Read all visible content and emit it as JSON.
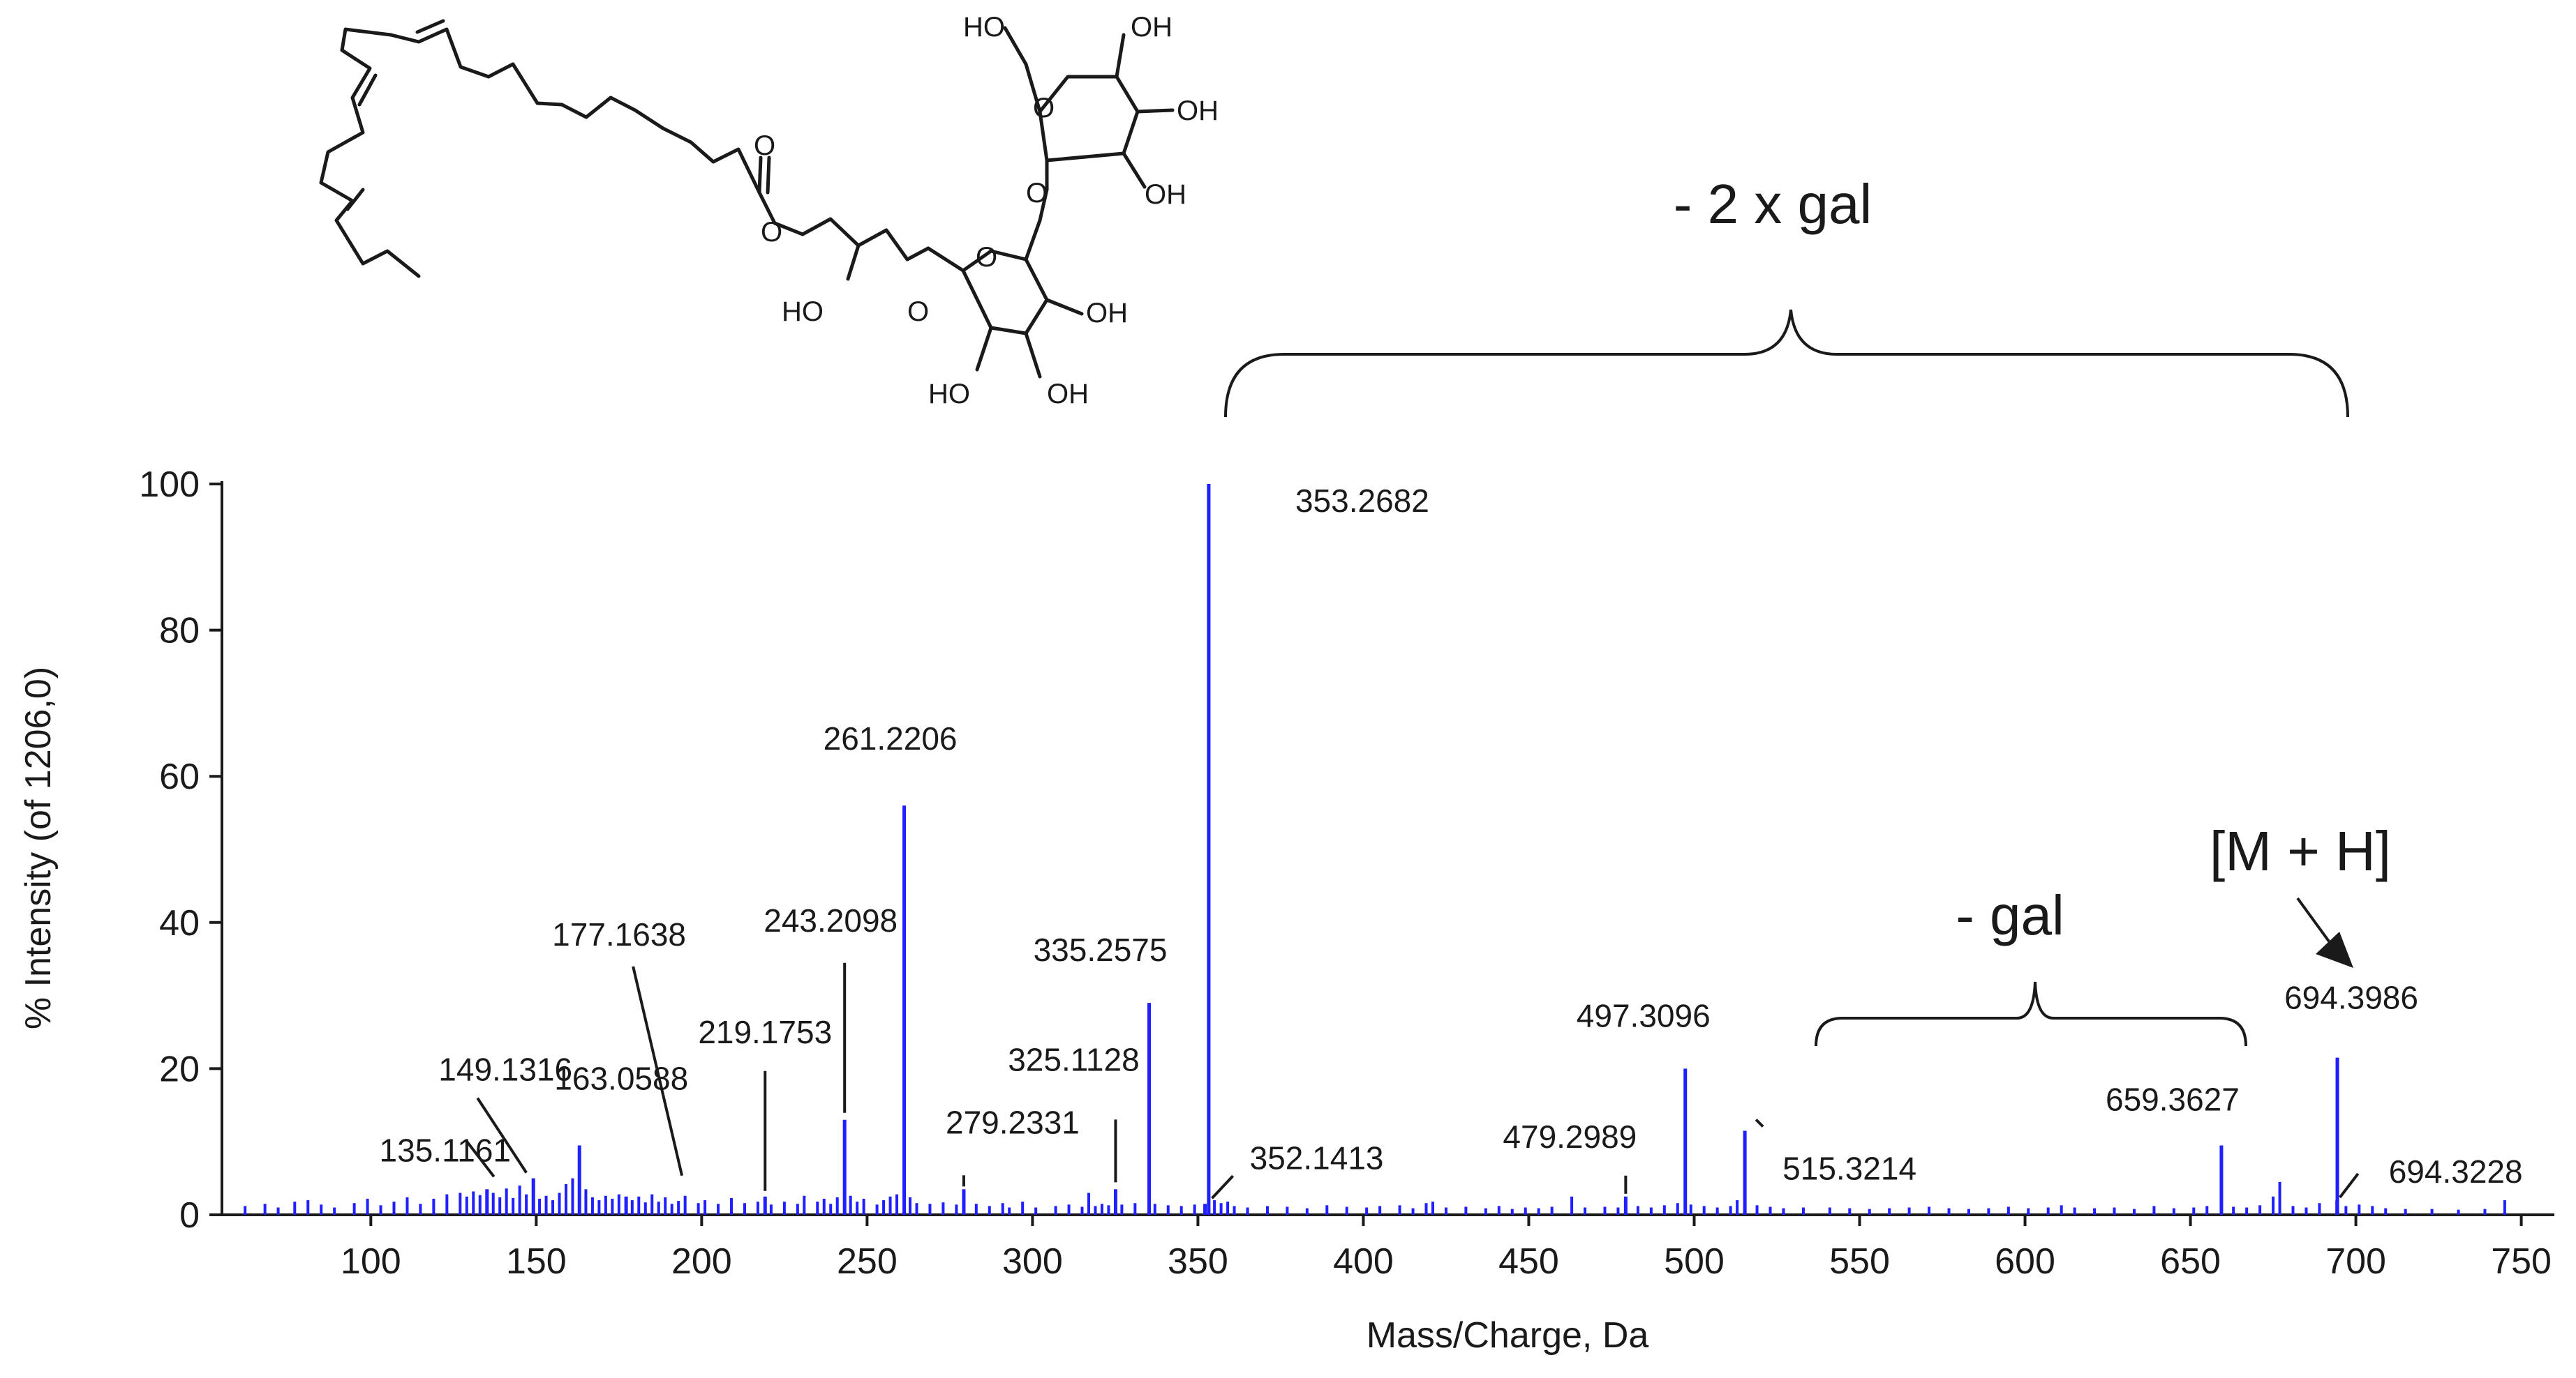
{
  "chart_data": {
    "type": "bar",
    "xlabel": "Mass/Charge, Da",
    "ylabel": "% Intensity (of 1206,0)",
    "xlim": [
      55,
      760
    ],
    "ylim": [
      0,
      100
    ],
    "xticks": [
      100,
      150,
      200,
      250,
      300,
      350,
      400,
      450,
      500,
      550,
      600,
      650,
      700,
      750
    ],
    "yticks": [
      0,
      20,
      40,
      60,
      80,
      100
    ],
    "grid": false,
    "peak_color": "#1f1fff",
    "labeled_peaks": [
      {
        "label": "135.1161",
        "mz": 135.1161,
        "intensity": 3.5
      },
      {
        "label": "149.1316",
        "mz": 149.1316,
        "intensity": 5
      },
      {
        "label": "163.0588",
        "mz": 163.0588,
        "intensity": 9.5
      },
      {
        "label": "177.1638",
        "mz": 177.1638,
        "intensity": 2.5
      },
      {
        "label": "219.1753",
        "mz": 219.1753,
        "intensity": 2.5
      },
      {
        "label": "243.2098",
        "mz": 243.2098,
        "intensity": 13
      },
      {
        "label": "261.2206",
        "mz": 261.2206,
        "intensity": 56
      },
      {
        "label": "279.2331",
        "mz": 279.2331,
        "intensity": 3.5
      },
      {
        "label": "325.1128",
        "mz": 325.1128,
        "intensity": 3.5
      },
      {
        "label": "335.2575",
        "mz": 335.2575,
        "intensity": 29
      },
      {
        "label": "352.1413",
        "mz": 352.1413,
        "intensity": 1.5
      },
      {
        "label": "353.2682",
        "mz": 353.2682,
        "intensity": 100
      },
      {
        "label": "479.2989",
        "mz": 479.2989,
        "intensity": 2.5
      },
      {
        "label": "497.3096",
        "mz": 497.3096,
        "intensity": 20
      },
      {
        "label": "515.3214",
        "mz": 515.3214,
        "intensity": 11.5
      },
      {
        "label": "659.3627",
        "mz": 659.3627,
        "intensity": 9.5
      },
      {
        "label": "694.3986",
        "mz": 694.3986,
        "intensity": 21.5
      },
      {
        "label": "694.3228",
        "mz": 694.3228,
        "intensity": 2
      }
    ],
    "minor_peaks": [
      [
        62,
        1.2
      ],
      [
        68,
        1.5
      ],
      [
        72,
        1
      ],
      [
        77,
        1.8
      ],
      [
        81,
        2
      ],
      [
        85,
        1.4
      ],
      [
        89,
        1
      ],
      [
        95,
        1.6
      ],
      [
        99,
        2.2
      ],
      [
        103,
        1.3
      ],
      [
        107,
        1.8
      ],
      [
        111,
        2.4
      ],
      [
        115,
        1.5
      ],
      [
        119,
        2.2
      ],
      [
        123,
        2.8
      ],
      [
        127,
        3
      ],
      [
        129,
        2.5
      ],
      [
        131,
        3.2
      ],
      [
        133,
        2.7
      ],
      [
        137,
        3
      ],
      [
        139,
        2.4
      ],
      [
        141,
        3.6
      ],
      [
        143,
        2.3
      ],
      [
        145,
        4
      ],
      [
        147,
        2.8
      ],
      [
        151,
        2.2
      ],
      [
        153,
        2.6
      ],
      [
        155,
        2
      ],
      [
        157,
        3
      ],
      [
        159,
        4.2
      ],
      [
        161,
        5
      ],
      [
        165,
        3.5
      ],
      [
        167,
        2.4
      ],
      [
        169,
        2
      ],
      [
        171,
        2.6
      ],
      [
        173,
        2.2
      ],
      [
        175,
        2.8
      ],
      [
        179,
        2
      ],
      [
        181,
        2.5
      ],
      [
        183,
        1.7
      ],
      [
        185,
        2.8
      ],
      [
        187,
        1.8
      ],
      [
        189,
        2.4
      ],
      [
        191,
        1.5
      ],
      [
        193,
        1.9
      ],
      [
        195,
        2.6
      ],
      [
        199,
        1.6
      ],
      [
        201,
        2
      ],
      [
        205,
        1.5
      ],
      [
        209,
        2.3
      ],
      [
        213,
        1.6
      ],
      [
        217,
        1.8
      ],
      [
        221,
        1.4
      ],
      [
        225,
        1.8
      ],
      [
        229,
        1.5
      ],
      [
        231,
        2.6
      ],
      [
        235,
        1.8
      ],
      [
        237,
        2.2
      ],
      [
        239,
        1.5
      ],
      [
        241,
        2.4
      ],
      [
        245,
        2.6
      ],
      [
        247,
        1.8
      ],
      [
        249,
        2.2
      ],
      [
        253,
        1.4
      ],
      [
        255,
        2
      ],
      [
        257,
        2.5
      ],
      [
        259,
        2.8
      ],
      [
        263,
        2.4
      ],
      [
        265,
        1.6
      ],
      [
        269,
        1.5
      ],
      [
        273,
        1.7
      ],
      [
        277,
        1.4
      ],
      [
        283,
        1.5
      ],
      [
        287,
        1.2
      ],
      [
        291,
        1.6
      ],
      [
        293,
        1
      ],
      [
        297,
        1.8
      ],
      [
        301,
        1
      ],
      [
        307,
        1.2
      ],
      [
        311,
        1.4
      ],
      [
        315,
        1.1
      ],
      [
        317,
        3
      ],
      [
        319,
        1.2
      ],
      [
        321,
        1.5
      ],
      [
        323,
        1.3
      ],
      [
        327,
        1.4
      ],
      [
        331,
        1.6
      ],
      [
        337,
        1.5
      ],
      [
        341,
        1.3
      ],
      [
        345,
        1.2
      ],
      [
        349,
        1.4
      ],
      [
        355,
        2
      ],
      [
        357,
        1.6
      ],
      [
        359,
        1.8
      ],
      [
        361,
        1.2
      ],
      [
        365,
        1
      ],
      [
        371,
        1.2
      ],
      [
        377,
        1.1
      ],
      [
        383,
        0.9
      ],
      [
        389,
        1.3
      ],
      [
        395,
        1.1
      ],
      [
        401,
        1
      ],
      [
        405,
        1.2
      ],
      [
        411,
        1.3
      ],
      [
        415,
        0.9
      ],
      [
        419,
        1.6
      ],
      [
        421,
        1.8
      ],
      [
        425,
        1
      ],
      [
        431,
        1.1
      ],
      [
        437,
        0.9
      ],
      [
        441,
        1.2
      ],
      [
        445,
        0.8
      ],
      [
        449,
        1
      ],
      [
        453,
        0.9
      ],
      [
        457,
        1.1
      ],
      [
        463,
        2.5
      ],
      [
        467,
        1
      ],
      [
        473,
        1.1
      ],
      [
        477,
        1
      ],
      [
        483,
        1.2
      ],
      [
        487,
        1
      ],
      [
        491,
        1.3
      ],
      [
        495,
        1.6
      ],
      [
        499,
        1.4
      ],
      [
        503,
        1.2
      ],
      [
        507,
        1
      ],
      [
        511,
        1.2
      ],
      [
        513,
        2
      ],
      [
        519,
        1.3
      ],
      [
        523,
        1.1
      ],
      [
        527,
        0.9
      ],
      [
        533,
        1
      ],
      [
        541,
        1
      ],
      [
        547,
        0.9
      ],
      [
        553,
        0.8
      ],
      [
        559,
        0.9
      ],
      [
        565,
        1
      ],
      [
        571,
        1.1
      ],
      [
        577,
        0.9
      ],
      [
        583,
        0.8
      ],
      [
        589,
        0.9
      ],
      [
        595,
        1.1
      ],
      [
        601,
        0.9
      ],
      [
        607,
        1
      ],
      [
        611,
        1.3
      ],
      [
        615,
        1
      ],
      [
        621,
        0.9
      ],
      [
        627,
        1
      ],
      [
        633,
        0.8
      ],
      [
        639,
        1.2
      ],
      [
        645,
        0.9
      ],
      [
        651,
        1
      ],
      [
        655,
        1.2
      ],
      [
        663,
        1.1
      ],
      [
        667,
        1
      ],
      [
        671,
        1.3
      ],
      [
        675,
        2.5
      ],
      [
        677,
        4.5
      ],
      [
        681,
        1.2
      ],
      [
        685,
        1
      ],
      [
        689,
        1.6
      ],
      [
        697,
        1.2
      ],
      [
        701,
        1.4
      ],
      [
        705,
        1.2
      ],
      [
        709,
        0.9
      ],
      [
        715,
        0.8
      ],
      [
        723,
        0.8
      ],
      [
        731,
        0.7
      ],
      [
        739,
        0.8
      ],
      [
        745,
        2
      ]
    ],
    "annotations": [
      {
        "text": "- 2 x gal",
        "from_mz": 353.2682,
        "to_mz": 694.3986
      },
      {
        "text": "- gal",
        "from_mz": 535,
        "to_mz": 666
      },
      {
        "text": "[M + H]",
        "target_mz": 694.3986
      }
    ]
  },
  "structure_labels": {
    "ho_top": "HO",
    "oh_top": "OH",
    "oh_right1": "OH",
    "oh_right2": "OH",
    "ring1_o": "O",
    "link_o": "O",
    "ring2_o": "O",
    "oh_r2a": "OH",
    "oh_r2b": "OH",
    "ho_r2c": "HO",
    "glycerol_ho": "HO",
    "glycerol_o1": "O",
    "glycerol_o2": "O",
    "ester_o": "O"
  }
}
